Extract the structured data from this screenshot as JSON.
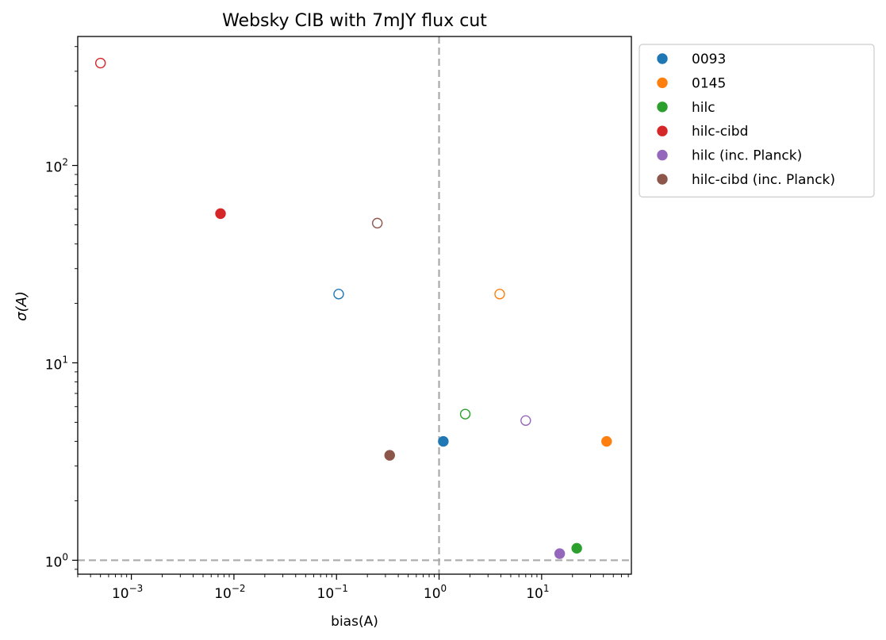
{
  "chart_data": {
    "type": "scatter",
    "title": "Websky CIB with 7mJY flux cut",
    "xlabel": "bias(A)",
    "ylabel": "σ(A)",
    "xscale": "log",
    "yscale": "log",
    "xlim": [
      0.0003,
      75
    ],
    "ylim": [
      0.85,
      450
    ],
    "x_ticks": [
      {
        "value": 0.001,
        "base": "10",
        "exp": "−3"
      },
      {
        "value": 0.01,
        "base": "10",
        "exp": "−2"
      },
      {
        "value": 0.1,
        "base": "10",
        "exp": "−1"
      },
      {
        "value": 1,
        "base": "10",
        "exp": "0"
      },
      {
        "value": 10,
        "base": "10",
        "exp": "1"
      }
    ],
    "y_ticks": [
      {
        "value": 1,
        "base": "10",
        "exp": "0"
      },
      {
        "value": 10,
        "base": "10",
        "exp": "1"
      },
      {
        "value": 100,
        "base": "10",
        "exp": "2"
      }
    ],
    "reference_lines": {
      "x": 1,
      "y": 1,
      "color": "#aaaaaa"
    },
    "grid": false,
    "legend_position": "outside-top-right",
    "marker_styles": {
      "filled": "solid circle",
      "open": "hollow circle"
    },
    "series": [
      {
        "name": "0093",
        "color": "#1f77b4",
        "points": [
          {
            "x": 1.1,
            "y": 4.0,
            "filled": true
          },
          {
            "x": 0.105,
            "y": 22.3,
            "filled": false
          }
        ]
      },
      {
        "name": "0145",
        "color": "#ff7f0e",
        "points": [
          {
            "x": 43,
            "y": 4.0,
            "filled": true
          },
          {
            "x": 3.9,
            "y": 22.3,
            "filled": false
          }
        ]
      },
      {
        "name": "hilc",
        "color": "#2ca02c",
        "points": [
          {
            "x": 22,
            "y": 1.15,
            "filled": true
          },
          {
            "x": 1.8,
            "y": 5.5,
            "filled": false
          }
        ]
      },
      {
        "name": "hilc-cibd",
        "color": "#d62728",
        "points": [
          {
            "x": 0.0074,
            "y": 57,
            "filled": true
          },
          {
            "x": 0.0005,
            "y": 330,
            "filled": false
          }
        ]
      },
      {
        "name": "hilc (inc. Planck)",
        "color": "#9467bd",
        "points": [
          {
            "x": 15,
            "y": 1.08,
            "filled": true
          },
          {
            "x": 7.0,
            "y": 5.1,
            "filled": false
          }
        ]
      },
      {
        "name": "hilc-cibd (inc. Planck)",
        "color": "#8c564b",
        "points": [
          {
            "x": 0.33,
            "y": 3.4,
            "filled": true
          },
          {
            "x": 0.25,
            "y": 51,
            "filled": false
          }
        ]
      }
    ]
  }
}
